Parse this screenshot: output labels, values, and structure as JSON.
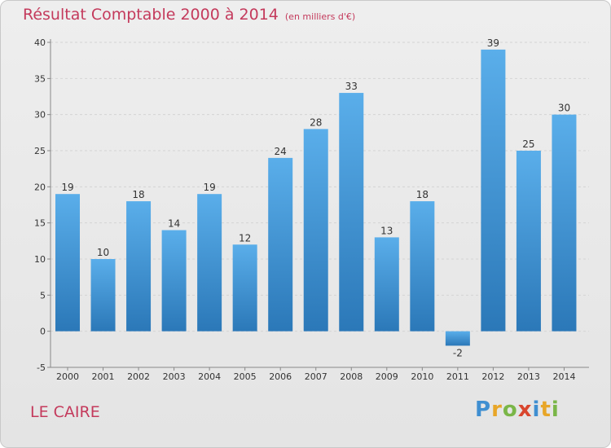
{
  "title": "Résultat Comptable 2000 à 2014",
  "title_unit": "(en milliers d'€)",
  "place": "LE CAIRE",
  "logo": {
    "letters": [
      "P",
      "r",
      "o",
      "x",
      "i",
      "t",
      "i"
    ],
    "colors": [
      "#3f8fd1",
      "#e8a628",
      "#7ab648",
      "#d9462e",
      "#3f8fd1",
      "#e8a628",
      "#7ab648"
    ]
  },
  "colors": {
    "title": "#c43a5c",
    "bar_light": "#5aaeea",
    "bar_dark": "#2b78b8",
    "axis": "#888888",
    "grid": "#d4d4d4"
  },
  "chart_data": {
    "type": "bar",
    "categories": [
      "2000",
      "2001",
      "2002",
      "2003",
      "2004",
      "2005",
      "2006",
      "2007",
      "2008",
      "2009",
      "2010",
      "2011",
      "2012",
      "2013",
      "2014"
    ],
    "values": [
      19,
      10,
      18,
      14,
      19,
      12,
      24,
      28,
      33,
      13,
      18,
      -2,
      39,
      25,
      30
    ],
    "yticks": [
      -5,
      0,
      5,
      10,
      15,
      20,
      25,
      30,
      35,
      40
    ],
    "ylim": [
      -5,
      40
    ],
    "grid": true
  }
}
